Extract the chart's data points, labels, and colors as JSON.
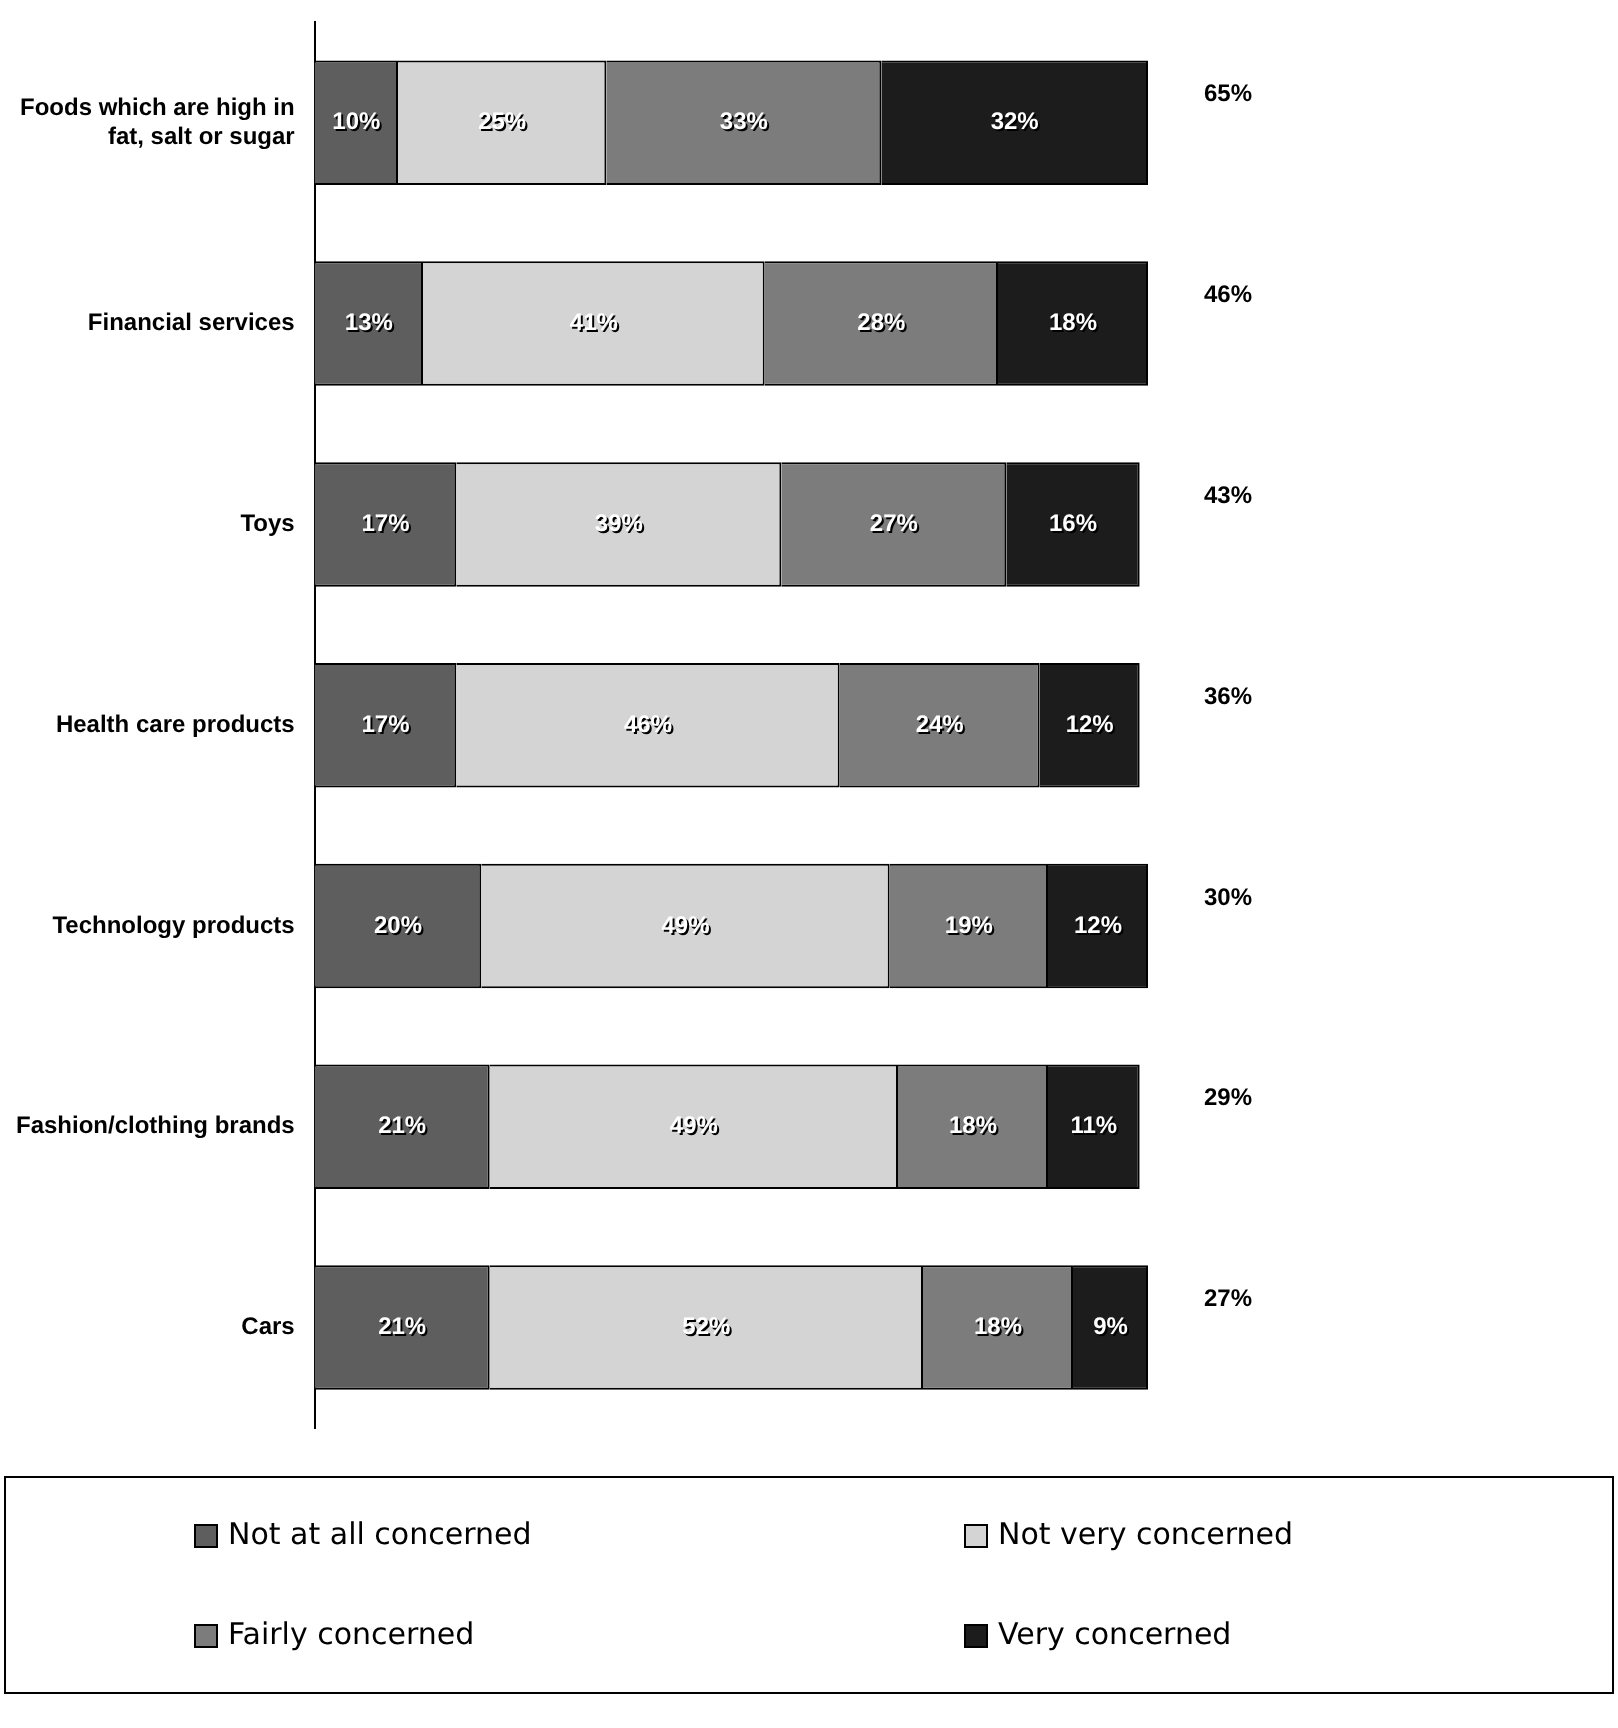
{
  "chart_data": {
    "type": "bar",
    "orientation": "horizontal",
    "stacked": true,
    "categories": [
      "Foods which are high in fat, salt or sugar",
      "Financial services",
      "Toys",
      "Health care products",
      "Technology products",
      "Fashion/clothing brands",
      "Cars"
    ],
    "series": [
      {
        "name": "Not at all concerned",
        "color": "#5e5e5e",
        "values": [
          10,
          13,
          17,
          17,
          20,
          21,
          21
        ],
        "value_labels": [
          "10%",
          "13%",
          "17%",
          "17%",
          "20%",
          "21%",
          "21%"
        ]
      },
      {
        "name": "Not very concerned",
        "color": "#d4d4d4",
        "values": [
          25,
          41,
          39,
          46,
          49,
          49,
          52
        ],
        "value_labels": [
          "25%",
          "41%",
          "39%",
          "46%",
          "49%",
          "49%",
          "52%"
        ]
      },
      {
        "name": "Fairly concerned",
        "color": "#7c7c7c",
        "values": [
          33,
          28,
          27,
          24,
          19,
          18,
          18
        ],
        "value_labels": [
          "33%",
          "28%",
          "27%",
          "24%",
          "19%",
          "18%",
          "18%"
        ]
      },
      {
        "name": "Very concerned",
        "color": "#1c1c1c",
        "values": [
          32,
          18,
          16,
          12,
          12,
          11,
          9
        ],
        "value_labels": [
          "32%",
          "18%",
          "16%",
          "12%",
          "12%",
          "11%",
          "9%"
        ]
      }
    ],
    "annotations": [
      "65%",
      "46%",
      "43%",
      "36%",
      "30%",
      "29%",
      "27%"
    ],
    "xlim": [
      0,
      100
    ],
    "tick_labels": "y",
    "grid": false,
    "legend": "bottom"
  }
}
